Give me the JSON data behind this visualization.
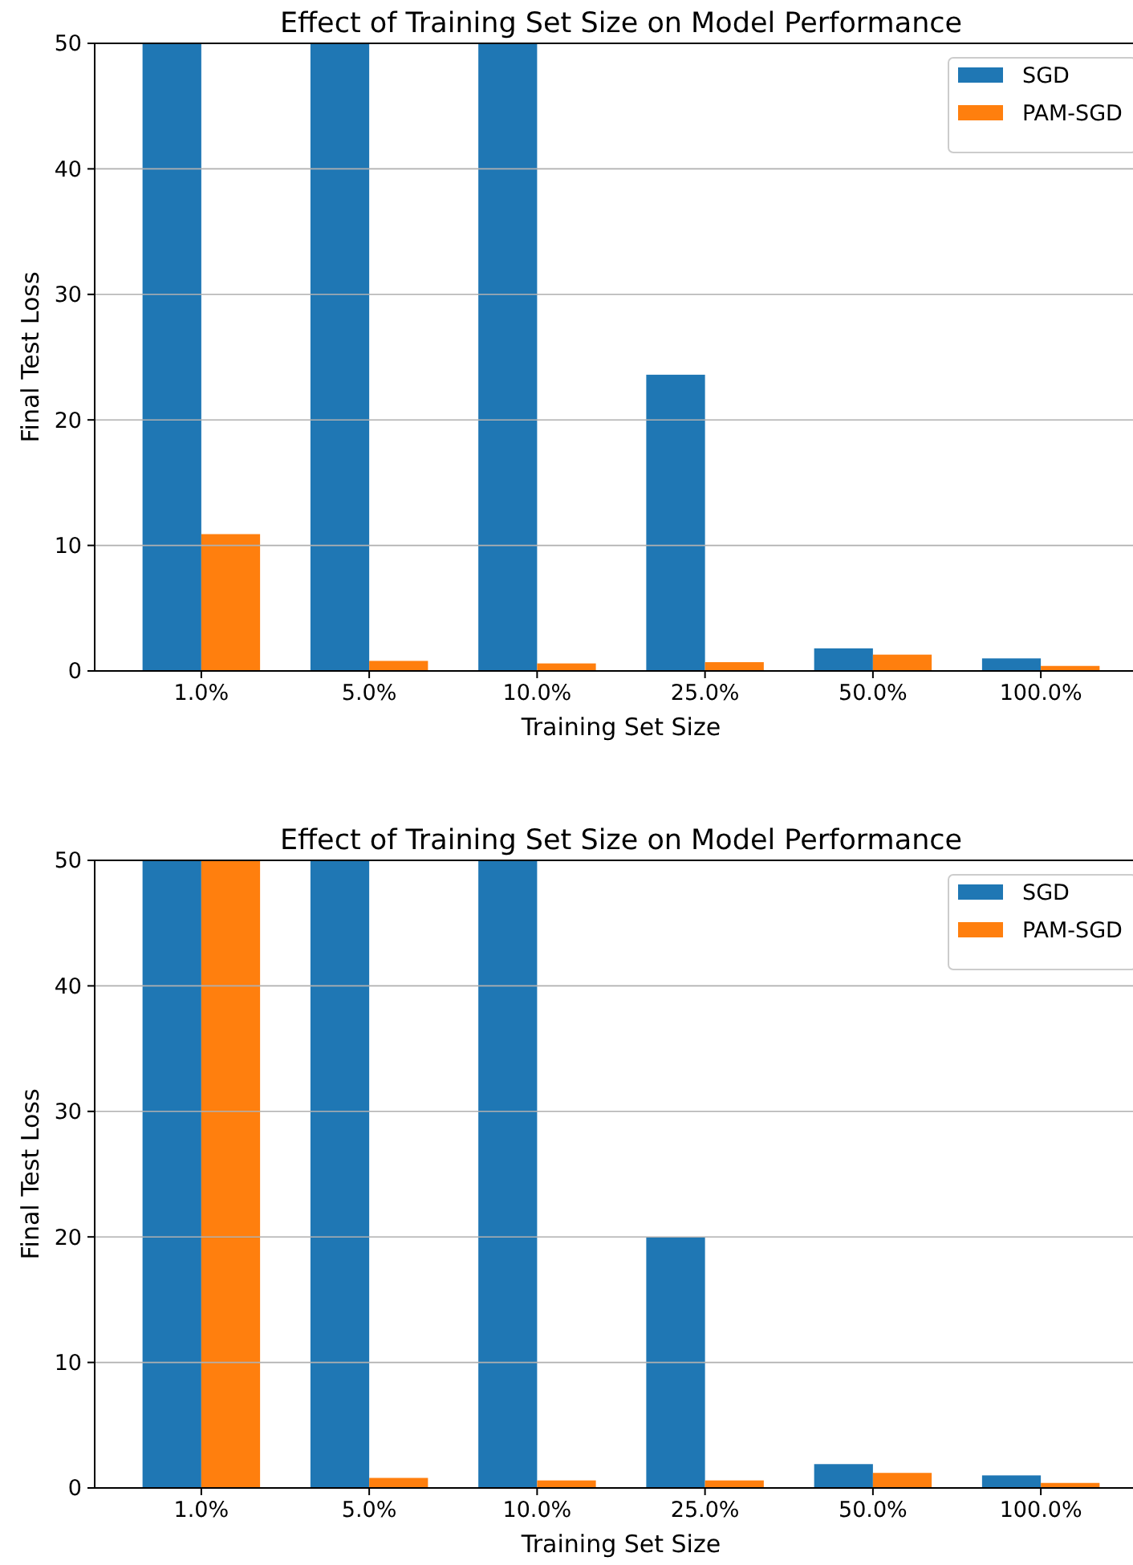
{
  "chart_data": [
    {
      "type": "bar",
      "title": "Effect of Training Set Size on Model Performance",
      "xlabel": "Training Set Size",
      "ylabel": "Final Test Loss",
      "categories": [
        "1.0%",
        "5.0%",
        "10.0%",
        "25.0%",
        "50.0%",
        "100.0%"
      ],
      "series": [
        {
          "name": "SGD",
          "color": "#1f77b4",
          "values": [
            50,
            50,
            50,
            23.6,
            1.8,
            1.0
          ]
        },
        {
          "name": "PAM-SGD",
          "color": "#ff7f0e",
          "values": [
            10.9,
            0.8,
            0.6,
            0.7,
            1.3,
            0.4
          ]
        }
      ],
      "ylim": [
        0,
        50
      ],
      "yticks": [
        0,
        10,
        20,
        30,
        40,
        50
      ],
      "grid": "y",
      "legend": "top right"
    },
    {
      "type": "bar",
      "title": "Effect of Training Set Size on Model Performance",
      "xlabel": "Training Set Size",
      "ylabel": "Final Test Loss",
      "categories": [
        "1.0%",
        "5.0%",
        "10.0%",
        "25.0%",
        "50.0%",
        "100.0%"
      ],
      "series": [
        {
          "name": "SGD",
          "color": "#1f77b4",
          "values": [
            50,
            50,
            50,
            20.0,
            1.9,
            1.0
          ]
        },
        {
          "name": "PAM-SGD",
          "color": "#ff7f0e",
          "values": [
            50,
            0.8,
            0.6,
            0.6,
            1.2,
            0.4
          ]
        }
      ],
      "ylim": [
        0,
        50
      ],
      "yticks": [
        0,
        10,
        20,
        30,
        40,
        50
      ],
      "grid": "y",
      "legend": "top right"
    }
  ]
}
